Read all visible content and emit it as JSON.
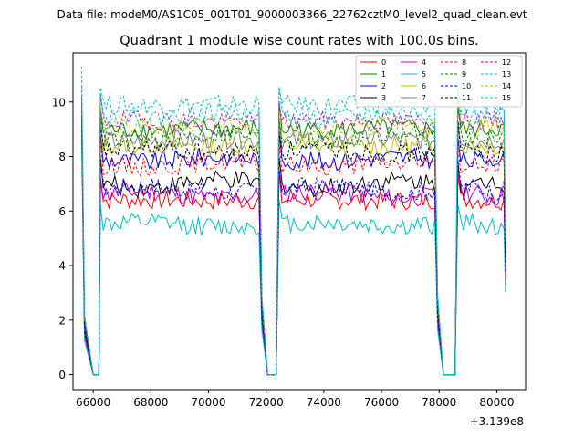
{
  "header": {
    "data_file": "Data file: modeM0/AS1C05_001T01_9000003366_22762cztM0_level2_quad_clean.evt"
  },
  "chart_data": {
    "type": "line",
    "title": "Quadrant 1 module wise count rates with 100.0s bins.",
    "xlabel": "",
    "ylabel": "",
    "x_offset_label": "+3.139e8",
    "xlim": [
      65300,
      81000
    ],
    "ylim": [
      -0.55,
      11.8
    ],
    "xticks": [
      66000,
      68000,
      70000,
      72000,
      74000,
      76000,
      78000,
      80000
    ],
    "xtick_labels": [
      "66000",
      "68000",
      "70000",
      "72000",
      "74000",
      "76000",
      "78000",
      "80000"
    ],
    "yticks": [
      0,
      2,
      4,
      6,
      8,
      10
    ],
    "ytick_labels": [
      "0",
      "2",
      "4",
      "6",
      "8",
      "10"
    ],
    "grid": false,
    "legend_position": "top-right",
    "legend_columns": 4,
    "time_segments": [
      {
        "start": 65600,
        "end": 66000,
        "shape": "ramp"
      },
      {
        "start": 66000,
        "end": 66250,
        "shape": "zero"
      },
      {
        "start": 66250,
        "end": 71850,
        "shape": "on"
      },
      {
        "start": 71850,
        "end": 72050,
        "shape": "ramp"
      },
      {
        "start": 72050,
        "end": 72450,
        "shape": "zero"
      },
      {
        "start": 72450,
        "end": 77950,
        "shape": "on"
      },
      {
        "start": 77950,
        "end": 78150,
        "shape": "ramp"
      },
      {
        "start": 78150,
        "end": 78650,
        "shape": "zero"
      },
      {
        "start": 78650,
        "end": 80300,
        "shape": "on"
      }
    ],
    "series": [
      {
        "name": "0",
        "color": "#ff0000",
        "dash": "solid",
        "level": 6.4,
        "spike": 9.0
      },
      {
        "name": "1",
        "color": "#008000",
        "dash": "solid",
        "level": 9.0,
        "spike": 9.8
      },
      {
        "name": "2",
        "color": "#0000ff",
        "dash": "solid",
        "level": 7.9,
        "spike": 9.6
      },
      {
        "name": "3",
        "color": "#000000",
        "dash": "solid",
        "level": 7.0,
        "spike": 9.4
      },
      {
        "name": "4",
        "color": "#bf00bf",
        "dash": "solid",
        "level": 6.6,
        "spike": 9.2
      },
      {
        "name": "5",
        "color": "#00bfbf",
        "dash": "solid",
        "level": 5.5,
        "spike": 8.8
      },
      {
        "name": "6",
        "color": "#bfbf00",
        "dash": "solid",
        "level": 8.4,
        "spike": 9.9
      },
      {
        "name": "7",
        "color": "#808080",
        "dash": "solid",
        "level": 8.6,
        "spike": 9.7
      },
      {
        "name": "8",
        "color": "#ff0000",
        "dash": "dashed",
        "level": 7.7,
        "spike": 9.5
      },
      {
        "name": "9",
        "color": "#008000",
        "dash": "dashed",
        "level": 8.7,
        "spike": 10.0
      },
      {
        "name": "10",
        "color": "#0000ff",
        "dash": "dashed",
        "level": 6.8,
        "spike": 9.3
      },
      {
        "name": "11",
        "color": "#000000",
        "dash": "dashed",
        "level": 8.2,
        "spike": 9.6
      },
      {
        "name": "12",
        "color": "#bf00bf",
        "dash": "dashed",
        "level": 9.3,
        "spike": 10.2
      },
      {
        "name": "13",
        "color": "#00bfbf",
        "dash": "dashed",
        "level": 9.9,
        "spike": 11.3
      },
      {
        "name": "14",
        "color": "#bfbf00",
        "dash": "dashed",
        "level": 9.1,
        "spike": 10.1
      },
      {
        "name": "15",
        "color": "#00bfbf",
        "dash": "dashed",
        "level": 9.5,
        "spike": 10.6
      }
    ]
  }
}
